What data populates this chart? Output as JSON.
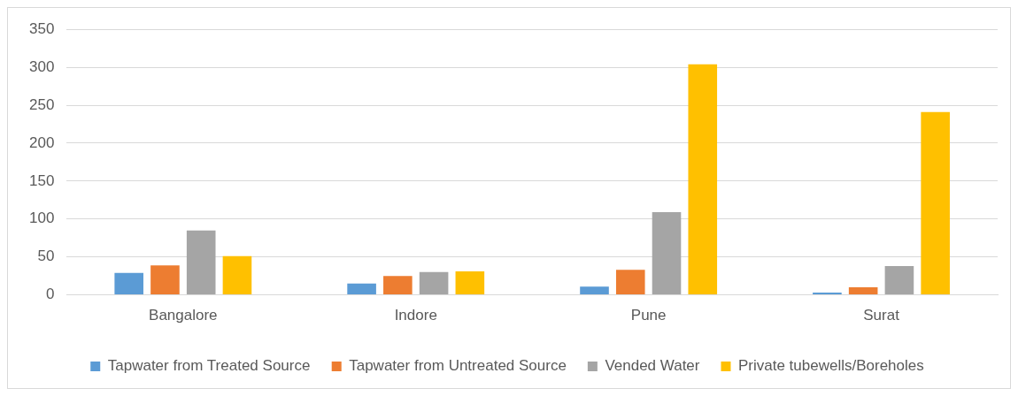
{
  "chart_data": {
    "type": "bar",
    "categories": [
      "Bangalore",
      "Indore",
      "Pune",
      "Surat"
    ],
    "series": [
      {
        "name": "Tapwater from Treated Source",
        "color": "#5b9bd5",
        "values": [
          29,
          15,
          11,
          3
        ]
      },
      {
        "name": "Tapwater from Untreated Source",
        "color": "#ed7d31",
        "values": [
          39,
          25,
          33,
          10
        ]
      },
      {
        "name": "Vended Water",
        "color": "#a5a5a5",
        "values": [
          85,
          30,
          109,
          38
        ]
      },
      {
        "name": "Private tubewells/Boreholes",
        "color": "#ffc000",
        "values": [
          51,
          31,
          304,
          241
        ]
      }
    ],
    "ylim": [
      0,
      350
    ],
    "yticks": [
      0,
      50,
      100,
      150,
      200,
      250,
      300,
      350
    ],
    "grid": "y",
    "legend": "bottom"
  }
}
